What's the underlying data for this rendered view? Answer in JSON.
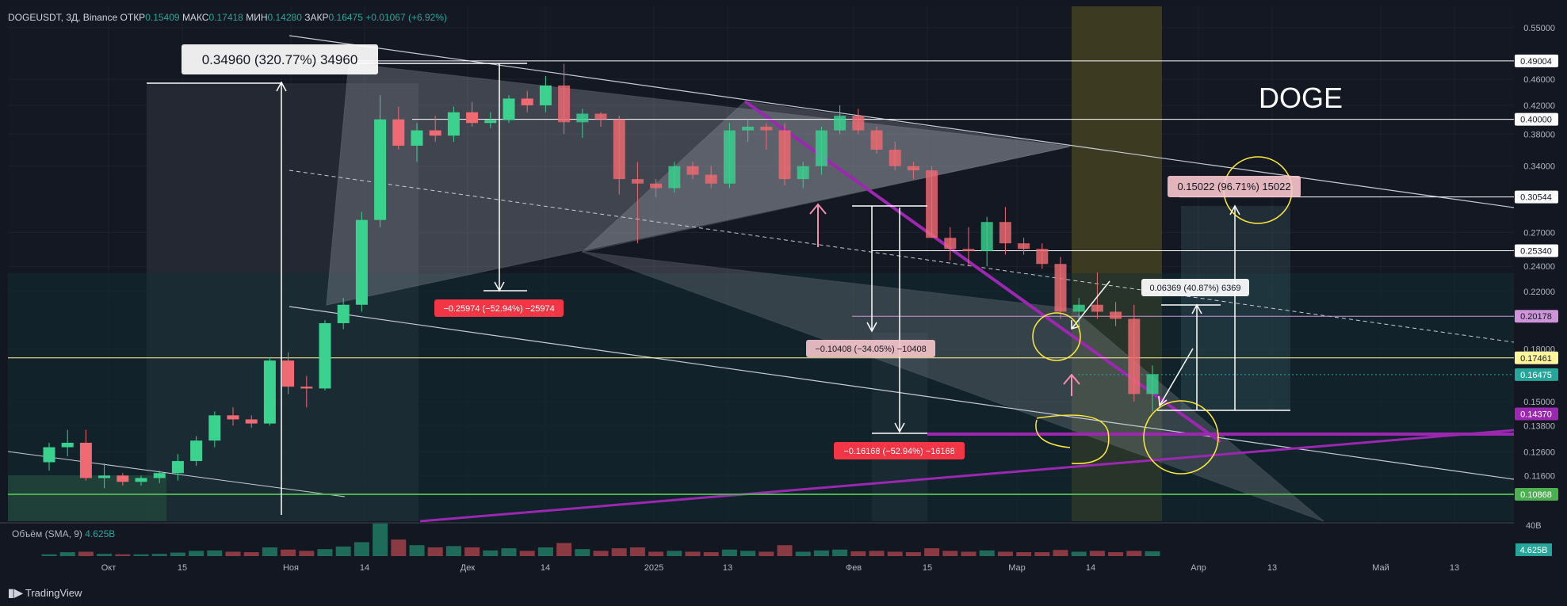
{
  "header": {
    "symbol": "DOGEUSDT, 3Д, Binance",
    "open_label": "ОТКР",
    "open_value": "0.15409",
    "high_label": "МАКС",
    "high_value": "0.17418",
    "low_label": "МИН",
    "low_value": "0.14280",
    "close_label": "ЗАКР",
    "close_value": "0.16475",
    "change": "+0.01067 (+6.92%)"
  },
  "volume_indicator": {
    "label": "Объём (SMA, 9)",
    "value": "4.625B"
  },
  "branding": {
    "logo_text": "TradingView"
  },
  "chart_data": {
    "type": "candlestick",
    "title": "DOGE",
    "y_scale": "log",
    "ylim": [
      0.1,
      0.57
    ],
    "y_ticks": [
      "0.55000",
      "0.46000",
      "0.42000",
      "0.38000",
      "0.34000",
      "0.27000",
      "0.24000",
      "0.22000",
      "0.18000",
      "0.15000",
      "0.13800",
      "0.12600",
      "0.11600"
    ],
    "x_ticks": [
      "Окт",
      "15",
      "Ноя",
      "14",
      "Дек",
      "14",
      "2025",
      "13",
      "Фев",
      "15",
      "Мар",
      "14",
      "Апр",
      "13",
      "Май",
      "13"
    ],
    "price_labels": [
      {
        "text": "0.49004",
        "value": 0.49004,
        "color": "#ffffff",
        "text_color": "#131722"
      },
      {
        "text": "0.40000",
        "value": 0.4,
        "color": "#ffffff",
        "text_color": "#131722"
      },
      {
        "text": "0.30544",
        "value": 0.30544,
        "color": "#ffffff",
        "text_color": "#131722"
      },
      {
        "text": "0.25340",
        "value": 0.2534,
        "color": "#ffffff",
        "text_color": "#131722"
      },
      {
        "text": "0.20178",
        "value": 0.20178,
        "color": "#ce93d8",
        "text_color": "#131722"
      },
      {
        "text": "0.17461",
        "value": 0.17461,
        "color": "#fff59d",
        "text_color": "#131722"
      },
      {
        "text": "0.16475",
        "value": 0.16475,
        "color": "#26a69a",
        "text_color": "#ffffff"
      },
      {
        "text": "0.14370",
        "value": 0.1437,
        "color": "#9c27b0",
        "text_color": "#ffffff"
      },
      {
        "text": "0.10868",
        "value": 0.10868,
        "color": "#4caf50",
        "text_color": "#ffffff"
      }
    ],
    "volume_axis_label": "40B",
    "volume_value_label": "4.625B",
    "measurements": [
      {
        "text": "0.34960 (320.77%) 34960",
        "style": "white"
      },
      {
        "text": "−0.25974 (−52.94%) −25974",
        "style": "red"
      },
      {
        "text": "−0.10408 (−34.05%) −10408",
        "style": "pink"
      },
      {
        "text": "−0.16168 (−52.94%) −16168",
        "style": "red"
      },
      {
        "text": "0.06369 (40.87%) 6369",
        "style": "white"
      },
      {
        "text": "0.15022 (96.71%) 15022",
        "style": "pink"
      }
    ],
    "candles": [
      [
        0.1215,
        0.13,
        0.118,
        0.128
      ],
      [
        0.128,
        0.136,
        0.124,
        0.13
      ],
      [
        0.13,
        0.136,
        0.114,
        0.115
      ],
      [
        0.115,
        0.121,
        0.111,
        0.116
      ],
      [
        0.116,
        0.117,
        0.112,
        0.1135
      ],
      [
        0.1135,
        0.116,
        0.112,
        0.115
      ],
      [
        0.115,
        0.118,
        0.113,
        0.117
      ],
      [
        0.117,
        0.125,
        0.114,
        0.122
      ],
      [
        0.122,
        0.133,
        0.12,
        0.131
      ],
      [
        0.131,
        0.145,
        0.128,
        0.143
      ],
      [
        0.143,
        0.147,
        0.138,
        0.141
      ],
      [
        0.141,
        0.143,
        0.137,
        0.139
      ],
      [
        0.139,
        0.175,
        0.138,
        0.173
      ],
      [
        0.173,
        0.178,
        0.154,
        0.158
      ],
      [
        0.158,
        0.164,
        0.147,
        0.157
      ],
      [
        0.157,
        0.199,
        0.156,
        0.197
      ],
      [
        0.197,
        0.215,
        0.193,
        0.21
      ],
      [
        0.21,
        0.29,
        0.205,
        0.282
      ],
      [
        0.282,
        0.435,
        0.275,
        0.4
      ],
      [
        0.4,
        0.418,
        0.36,
        0.365
      ],
      [
        0.365,
        0.395,
        0.345,
        0.385
      ],
      [
        0.385,
        0.405,
        0.37,
        0.378
      ],
      [
        0.378,
        0.418,
        0.37,
        0.41
      ],
      [
        0.41,
        0.425,
        0.39,
        0.395
      ],
      [
        0.395,
        0.41,
        0.388,
        0.399
      ],
      [
        0.399,
        0.435,
        0.395,
        0.43
      ],
      [
        0.43,
        0.442,
        0.41,
        0.42
      ],
      [
        0.42,
        0.465,
        0.41,
        0.45
      ],
      [
        0.45,
        0.485,
        0.38,
        0.396
      ],
      [
        0.396,
        0.415,
        0.375,
        0.408
      ],
      [
        0.408,
        0.41,
        0.39,
        0.4
      ],
      [
        0.4,
        0.405,
        0.308,
        0.325
      ],
      [
        0.325,
        0.345,
        0.26,
        0.32
      ],
      [
        0.32,
        0.325,
        0.305,
        0.315
      ],
      [
        0.315,
        0.345,
        0.31,
        0.34
      ],
      [
        0.34,
        0.345,
        0.325,
        0.33
      ],
      [
        0.33,
        0.34,
        0.315,
        0.32
      ],
      [
        0.32,
        0.395,
        0.315,
        0.385
      ],
      [
        0.385,
        0.4,
        0.37,
        0.39
      ],
      [
        0.39,
        0.395,
        0.36,
        0.385
      ],
      [
        0.385,
        0.395,
        0.318,
        0.325
      ],
      [
        0.325,
        0.345,
        0.315,
        0.34
      ],
      [
        0.34,
        0.39,
        0.33,
        0.385
      ],
      [
        0.385,
        0.42,
        0.38,
        0.405
      ],
      [
        0.405,
        0.415,
        0.38,
        0.385
      ],
      [
        0.385,
        0.39,
        0.355,
        0.36
      ],
      [
        0.36,
        0.37,
        0.335,
        0.34
      ],
      [
        0.34,
        0.345,
        0.325,
        0.335
      ],
      [
        0.335,
        0.34,
        0.265,
        0.265
      ],
      [
        0.265,
        0.275,
        0.245,
        0.255
      ],
      [
        0.255,
        0.275,
        0.24,
        0.253
      ],
      [
        0.253,
        0.285,
        0.24,
        0.28
      ],
      [
        0.28,
        0.295,
        0.25,
        0.26
      ],
      [
        0.26,
        0.265,
        0.25,
        0.255
      ],
      [
        0.255,
        0.26,
        0.238,
        0.242
      ],
      [
        0.242,
        0.248,
        0.2,
        0.205
      ],
      [
        0.205,
        0.215,
        0.195,
        0.21
      ],
      [
        0.21,
        0.235,
        0.2,
        0.205
      ],
      [
        0.205,
        0.212,
        0.195,
        0.2
      ],
      [
        0.2,
        0.21,
        0.15,
        0.154
      ],
      [
        0.154,
        0.17,
        0.145,
        0.165
      ]
    ],
    "volume": [
      0.4,
      0.9,
      1.0,
      0.5,
      0.4,
      0.4,
      0.5,
      0.8,
      1.2,
      1.3,
      1.0,
      0.9,
      2.0,
      1.5,
      1.2,
      1.6,
      2.2,
      3.2,
      7.5,
      3.8,
      2.5,
      2.0,
      2.3,
      2.0,
      1.3,
      1.8,
      1.2,
      2.0,
      3.0,
      1.6,
      1.2,
      1.8,
      2.0,
      1.0,
      1.2,
      1.0,
      0.9,
      1.5,
      1.2,
      1.0,
      2.5,
      1.0,
      1.3,
      1.5,
      1.1,
      1.2,
      1.0,
      0.9,
      1.8,
      1.2,
      1.0,
      1.3,
      1.0,
      0.9,
      0.9,
      1.4,
      1.0,
      1.2,
      0.9,
      1.2,
      1.1
    ]
  }
}
